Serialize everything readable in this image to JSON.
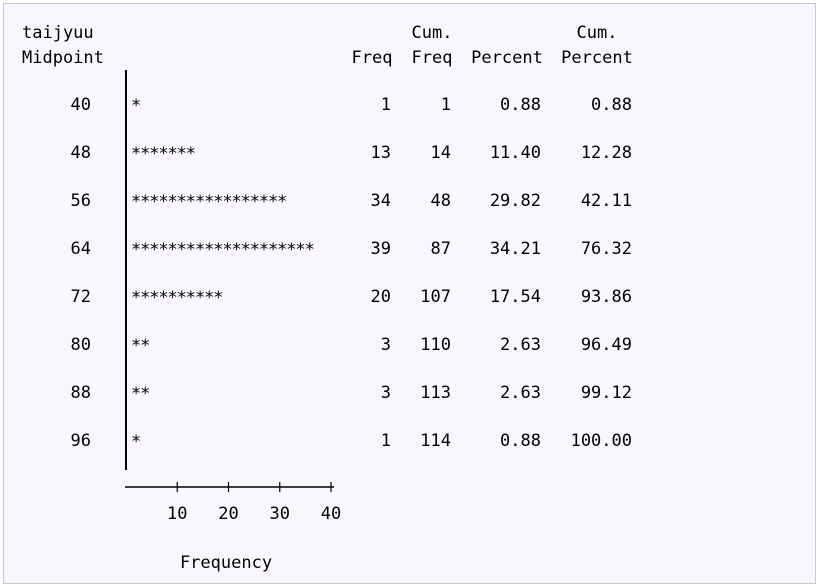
{
  "chart_data": {
    "type": "bar",
    "orientation": "horizontal",
    "mark": "*",
    "variable_label": "taijyuu",
    "midpoint_label": "Midpoint",
    "column_headers": {
      "freq": [
        "",
        "Freq"
      ],
      "cum_freq": [
        "Cum.",
        "Freq"
      ],
      "percent": [
        "",
        "Percent"
      ],
      "cum_percent": [
        "Cum.",
        "Percent"
      ]
    },
    "categories": [
      "40",
      "48",
      "56",
      "64",
      "72",
      "80",
      "88",
      "96"
    ],
    "values": [
      1,
      13,
      34,
      39,
      20,
      3,
      3,
      1
    ],
    "cum_freq": [
      "1",
      "14",
      "48",
      "87",
      "107",
      "110",
      "113",
      "114"
    ],
    "percent": [
      "0.88",
      "11.40",
      "29.82",
      "34.21",
      "17.54",
      "2.63",
      "2.63",
      "0.88"
    ],
    "cum_percent": [
      "0.88",
      "12.28",
      "42.11",
      "76.32",
      "93.86",
      "96.49",
      "99.12",
      "100.00"
    ],
    "xlabel": "Frequency",
    "xticks": [
      "10",
      "20",
      "30",
      "40"
    ],
    "xlim": [
      0,
      40
    ]
  }
}
